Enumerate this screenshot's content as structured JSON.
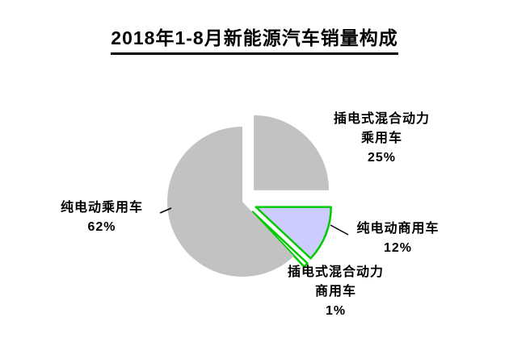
{
  "title": "2018年1-8月新能源汽车销量构成",
  "chart_data": {
    "type": "pie",
    "title": "2018年1-8月新能源汽车销量构成",
    "direction": "clockwise",
    "start_angle_deg": 0,
    "legend": "none",
    "background": "#ffffff",
    "slices": [
      {
        "id": "phev-passenger",
        "label": "插电式混合动力乘用车",
        "value": 25,
        "color": "#c2c2c2",
        "stroke": "none",
        "explode": 20
      },
      {
        "id": "bev-commercial",
        "label": "纯电动商用车",
        "value": 12,
        "color": "#ccccff",
        "stroke": "#00cc00",
        "explode": 18
      },
      {
        "id": "phev-commercial",
        "label": "插电式混合动力商用车",
        "value": 1,
        "color": "#ffffff",
        "stroke": "#00cc00",
        "explode": 18
      },
      {
        "id": "bev-passenger",
        "label": "纯电动乘用车",
        "value": 62,
        "color": "#c2c2c2",
        "stroke": "none",
        "explode": 0
      }
    ]
  },
  "labels": {
    "phev_passenger": {
      "line1": "插电式混合动力",
      "line2": "乘用车",
      "line3": "25%"
    },
    "bev_passenger": {
      "line1": "纯电动乘用车",
      "line2": "62%"
    },
    "bev_commercial": {
      "line1": "纯电动商用车",
      "line2": "12%"
    },
    "phev_commercial": {
      "line1": "插电式混合动力",
      "line2": "商用车",
      "line3": "1%"
    }
  }
}
